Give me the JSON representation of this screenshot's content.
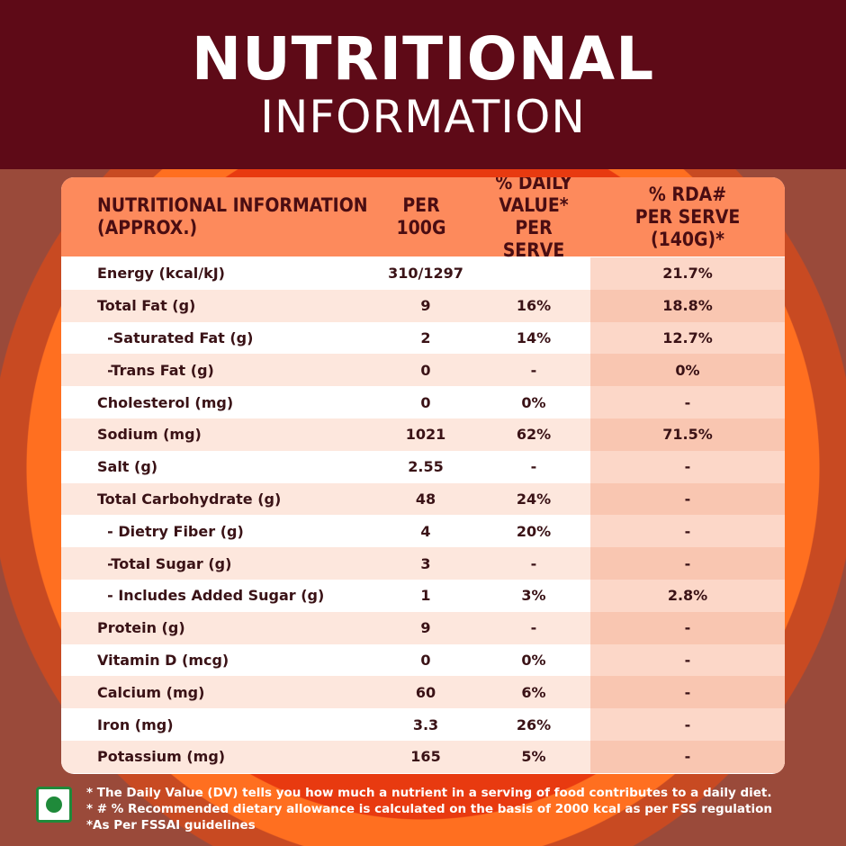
{
  "header": {
    "title_main": "NUTRITIONAL",
    "title_sub": "INFORMATION"
  },
  "table": {
    "columns": [
      "NUTRITIONAL INFORMATION\n(APPROX.)",
      "PER\n100G",
      "% DAILY\nVALUE* PER\nSERVE",
      "% RDA#\nPER SERVE\n(140G)*"
    ],
    "rows": [
      {
        "nutrient": "Energy (kcal/kJ)",
        "per_100g": "310/1297",
        "daily_value": "",
        "rda": "21.7%"
      },
      {
        "nutrient": "Total Fat (g)",
        "per_100g": "9",
        "daily_value": "16%",
        "rda": "18.8%"
      },
      {
        "nutrient": "  -Saturated Fat (g)",
        "per_100g": "2",
        "daily_value": "14%",
        "rda": "12.7%"
      },
      {
        "nutrient": "  -Trans Fat (g)",
        "per_100g": "0",
        "daily_value": "-",
        "rda": "0%"
      },
      {
        "nutrient": "Cholesterol (mg)",
        "per_100g": "0",
        "daily_value": "0%",
        "rda": "-"
      },
      {
        "nutrient": "Sodium (mg)",
        "per_100g": "1021",
        "daily_value": "62%",
        "rda": "71.5%"
      },
      {
        "nutrient": "Salt (g)",
        "per_100g": "2.55",
        "daily_value": "-",
        "rda": "-"
      },
      {
        "nutrient": "Total Carbohydrate (g)",
        "per_100g": "48",
        "daily_value": "24%",
        "rda": "-"
      },
      {
        "nutrient": "  - Dietry Fiber (g)",
        "per_100g": "4",
        "daily_value": "20%",
        "rda": "-"
      },
      {
        "nutrient": "  -Total Sugar (g)",
        "per_100g": "3",
        "daily_value": "-",
        "rda": "-"
      },
      {
        "nutrient": "  - Includes Added Sugar (g)",
        "per_100g": "1",
        "daily_value": "3%",
        "rda": "2.8%"
      },
      {
        "nutrient": "Protein (g)",
        "per_100g": "9",
        "daily_value": "-",
        "rda": "-"
      },
      {
        "nutrient": "Vitamin D (mcg)",
        "per_100g": "0",
        "daily_value": "0%",
        "rda": "-"
      },
      {
        "nutrient": "Calcium (mg)",
        "per_100g": "60",
        "daily_value": "6%",
        "rda": "-"
      },
      {
        "nutrient": "Iron (mg)",
        "per_100g": "3.3",
        "daily_value": "26%",
        "rda": "-"
      },
      {
        "nutrient": "Potassium (mg)",
        "per_100g": "165",
        "daily_value": "5%",
        "rda": "-"
      }
    ]
  },
  "footer": {
    "veg_icon": "veg-mark-icon",
    "notes": [
      "*  The Daily Value (DV) tells you how much a nutrient in a serving of food contributes to a daily diet.",
      "*  # % Recommended dietary allowance is calculated on the basis of 2000 kcal as per FSS regulation",
      "*As Per FSSAI guidelines"
    ]
  },
  "colors": {
    "header_bg": "#5e0a17",
    "table_header_bg": "#fd8a5c",
    "veg_green": "#1f8a3a"
  }
}
